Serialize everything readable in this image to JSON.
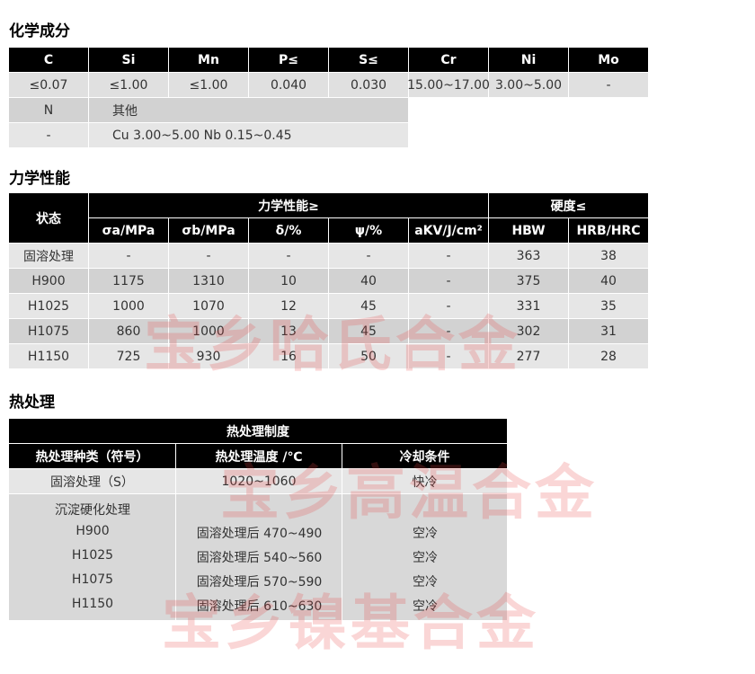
{
  "chemical": {
    "title": "化学成分",
    "header": [
      "C",
      "Si",
      "Mn",
      "P≤",
      "S≤",
      "Cr",
      "Ni",
      "Mo"
    ],
    "row": [
      "≤0.07",
      "≤1.00",
      "≤1.00",
      "0.040",
      "0.030",
      "15.00~17.00",
      "3.00~5.00",
      "-"
    ],
    "extra_header": [
      "N",
      "其他"
    ],
    "extra_row": [
      "-",
      "Cu 3.00~5.00 Nb 0.15~0.45"
    ]
  },
  "mechanical": {
    "title": "力学性能",
    "state_label": "状态",
    "group1": "力学性能≥",
    "group2": "硬度≤",
    "columns": [
      "σa/MPa",
      "σb/MPa",
      "δ/%",
      "ψ/%",
      "aKV/J/cm²",
      "HBW",
      "HRB/HRC"
    ],
    "rows": [
      [
        "固溶处理",
        "-",
        "-",
        "-",
        "-",
        "-",
        "363",
        "38"
      ],
      [
        "H900",
        "1175",
        "1310",
        "10",
        "40",
        "-",
        "375",
        "40"
      ],
      [
        "H1025",
        "1000",
        "1070",
        "12",
        "45",
        "-",
        "331",
        "35"
      ],
      [
        "H1075",
        "860",
        "1000",
        "13",
        "45",
        "-",
        "302",
        "31"
      ],
      [
        "H1150",
        "725",
        "930",
        "16",
        "50",
        "-",
        "277",
        "28"
      ]
    ]
  },
  "heat": {
    "title": "热处理",
    "table_title": "热处理制度",
    "columns": [
      "热处理种类（符号）",
      "热处理温度 /℃",
      "冷却条件"
    ],
    "rows": [
      [
        "固溶处理（S）",
        "1020~1060",
        "快冷"
      ]
    ],
    "aging_label": "沉淀硬化处理",
    "aging": [
      [
        "H900",
        "固溶处理后 470~490",
        "空冷"
      ],
      [
        "H1025",
        "固溶处理后 540~560",
        "空冷"
      ],
      [
        "H1075",
        "固溶处理后 570~590",
        "空冷"
      ],
      [
        "H1150",
        "固溶处理后 610~630",
        "空冷"
      ]
    ]
  },
  "watermarks": [
    "宝乡哈氏合金",
    "宝乡高温合金",
    "宝乡镍基合金"
  ]
}
